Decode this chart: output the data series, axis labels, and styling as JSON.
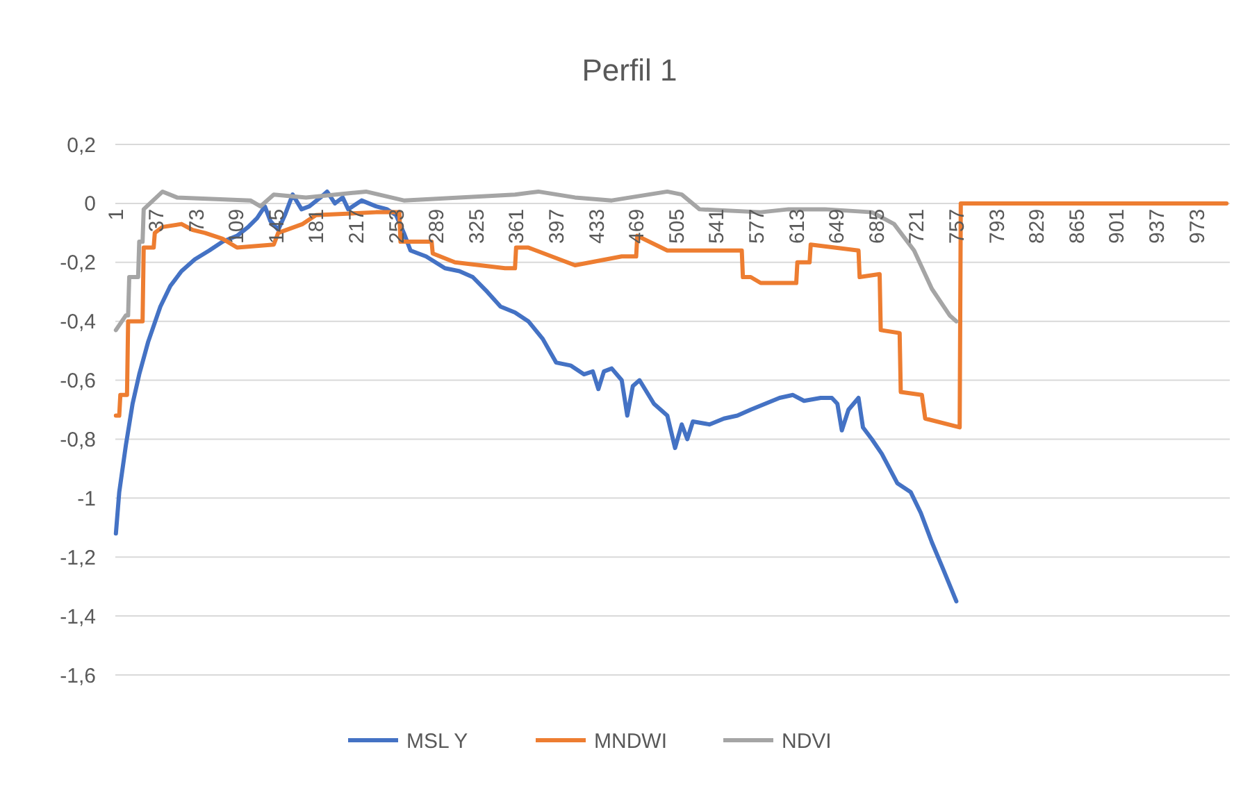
{
  "chart_data": {
    "type": "line",
    "title": "Perfil 1",
    "legend": "bottom",
    "grid": "y",
    "line_style": "solid",
    "marker": "none",
    "xlim": [
      0.5,
      1003
    ],
    "xticks": [
      1,
      37,
      73,
      109,
      145,
      181,
      217,
      253,
      289,
      325,
      361,
      397,
      433,
      469,
      505,
      541,
      577,
      613,
      649,
      685,
      721,
      757,
      793,
      829,
      865,
      901,
      937,
      973
    ],
    "ylim": [
      -1.6,
      0.2
    ],
    "yticks": [
      {
        "value": 0.2,
        "label": "0,2"
      },
      0,
      {
        "value": -0.2,
        "label": "-0,2"
      },
      {
        "value": -0.4,
        "label": "-0,4"
      },
      {
        "value": -0.6,
        "label": "-0,6"
      },
      {
        "value": -0.8,
        "label": "-0,8"
      },
      -1,
      {
        "value": -1.2,
        "label": "-1,2"
      },
      {
        "value": -1.4,
        "label": "-1,4"
      },
      {
        "value": -1.6,
        "label": "-1,6"
      }
    ],
    "series": [
      {
        "name": "MSL Y",
        "color": "#4472c4",
        "x": [
          1,
          4,
          10,
          16,
          22,
          30,
          41,
          50,
          60,
          72,
          85,
          97,
          110,
          120,
          128,
          135,
          140,
          147,
          153,
          160,
          168,
          175,
          185,
          191,
          198,
          205,
          210,
          222,
          235,
          245,
          253,
          260,
          266,
          280,
          297,
          310,
          322,
          335,
          347,
          360,
          372,
          385,
          397,
          410,
          422,
          430,
          435,
          440,
          447,
          456,
          461,
          466,
          472,
          485,
          497,
          504,
          510,
          515,
          520,
          535,
          548,
          560,
          572,
          585,
          598,
          610,
          620,
          635,
          645,
          650,
          654,
          660,
          669,
          673,
          681,
          690,
          704,
          716,
          725,
          735,
          745,
          757
        ],
        "values": [
          -1.12,
          -0.98,
          -0.82,
          -0.68,
          -0.58,
          -0.47,
          -0.35,
          -0.28,
          -0.23,
          -0.19,
          -0.16,
          -0.13,
          -0.11,
          -0.08,
          -0.05,
          -0.01,
          -0.06,
          -0.09,
          -0.04,
          0.03,
          -0.02,
          -0.01,
          0.02,
          0.04,
          0.0,
          0.02,
          -0.02,
          0.01,
          -0.01,
          -0.02,
          -0.04,
          -0.1,
          -0.16,
          -0.18,
          -0.22,
          -0.23,
          -0.25,
          -0.3,
          -0.35,
          -0.37,
          -0.4,
          -0.46,
          -0.54,
          -0.55,
          -0.58,
          -0.57,
          -0.63,
          -0.57,
          -0.56,
          -0.6,
          -0.72,
          -0.62,
          -0.6,
          -0.68,
          -0.72,
          -0.83,
          -0.75,
          -0.8,
          -0.74,
          -0.75,
          -0.73,
          -0.72,
          -0.7,
          -0.68,
          -0.66,
          -0.65,
          -0.67,
          -0.66,
          -0.66,
          -0.68,
          -0.77,
          -0.7,
          -0.66,
          -0.76,
          -0.8,
          -0.85,
          -0.95,
          -0.98,
          -1.05,
          -1.15,
          -1.24,
          -1.35
        ]
      },
      {
        "name": "MNDWI",
        "color": "#ed7d31",
        "x": [
          1,
          4,
          5,
          11,
          12,
          25,
          26,
          35,
          36,
          43,
          60,
          70,
          81,
          97,
          110,
          143,
          147,
          169,
          181,
          235,
          256,
          257,
          285,
          286,
          306,
          351,
          360,
          361,
          372,
          414,
          456,
          469,
          470,
          497,
          535,
          564,
          565,
          572,
          581,
          613,
          614,
          625,
          626,
          669,
          670,
          688,
          689,
          706,
          707,
          726,
          729,
          760,
          761,
          1000
        ],
        "values": [
          -0.72,
          -0.72,
          -0.65,
          -0.65,
          -0.4,
          -0.4,
          -0.15,
          -0.15,
          -0.1,
          -0.08,
          -0.07,
          -0.09,
          -0.1,
          -0.12,
          -0.15,
          -0.14,
          -0.1,
          -0.07,
          -0.04,
          -0.03,
          -0.03,
          -0.13,
          -0.13,
          -0.17,
          -0.2,
          -0.22,
          -0.22,
          -0.15,
          -0.15,
          -0.21,
          -0.18,
          -0.18,
          -0.11,
          -0.16,
          -0.16,
          -0.16,
          -0.25,
          -0.25,
          -0.27,
          -0.27,
          -0.2,
          -0.2,
          -0.14,
          -0.16,
          -0.25,
          -0.24,
          -0.43,
          -0.44,
          -0.64,
          -0.65,
          -0.73,
          -0.76,
          0,
          0
        ]
      },
      {
        "name": "NDVI",
        "color": "#a5a5a5",
        "x": [
          1,
          10,
          12,
          13,
          21,
          22,
          25,
          26,
          43,
          56,
          122,
          131,
          143,
          172,
          226,
          260,
          360,
          381,
          414,
          447,
          497,
          510,
          526,
          581,
          606,
          639,
          681,
          701,
          719,
          735,
          751,
          757
        ],
        "values": [
          -0.43,
          -0.38,
          -0.38,
          -0.25,
          -0.25,
          -0.13,
          -0.13,
          -0.02,
          0.04,
          0.02,
          0.01,
          -0.01,
          0.03,
          0.02,
          0.04,
          0.01,
          0.03,
          0.04,
          0.02,
          0.01,
          0.04,
          0.03,
          -0.02,
          -0.03,
          -0.02,
          -0.02,
          -0.03,
          -0.07,
          -0.16,
          -0.29,
          -0.38,
          -0.4
        ]
      }
    ]
  }
}
